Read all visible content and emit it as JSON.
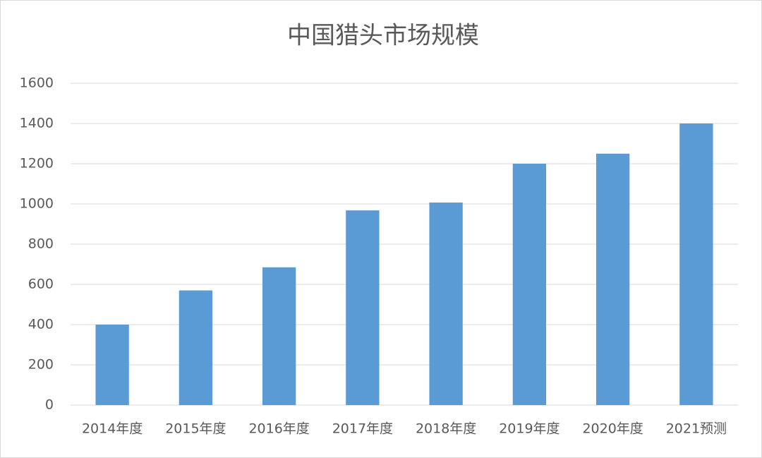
{
  "chart_data": {
    "type": "bar",
    "title": "中国猎头市场规模",
    "categories": [
      "2014年度",
      "2015年度",
      "2016年度",
      "2017年度",
      "2018年度",
      "2019年度",
      "2020年度",
      "2021预测"
    ],
    "values": [
      400,
      570,
      685,
      968,
      1007,
      1200,
      1250,
      1400
    ],
    "color": "#5b9bd5",
    "ylim": [
      0,
      1600
    ],
    "yticks": [
      0,
      200,
      400,
      600,
      800,
      1000,
      1200,
      1400,
      1600
    ],
    "grid": true
  }
}
